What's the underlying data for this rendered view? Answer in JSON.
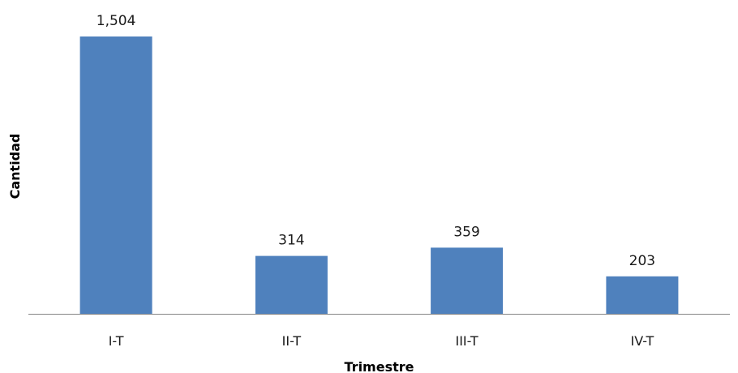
{
  "chart_data": {
    "type": "bar",
    "categories": [
      "I-T",
      "II-T",
      "III-T",
      "IV-T"
    ],
    "values": [
      1504,
      314,
      359,
      203
    ],
    "data_labels": [
      "1,504",
      "314",
      "359",
      "203"
    ],
    "xlabel": "Trimestre",
    "ylabel": "Cantidad",
    "ylim": [
      0,
      1504
    ],
    "grid": false,
    "legend": "none",
    "bar_color": "#4f81bd",
    "axis_color": "#868686"
  }
}
